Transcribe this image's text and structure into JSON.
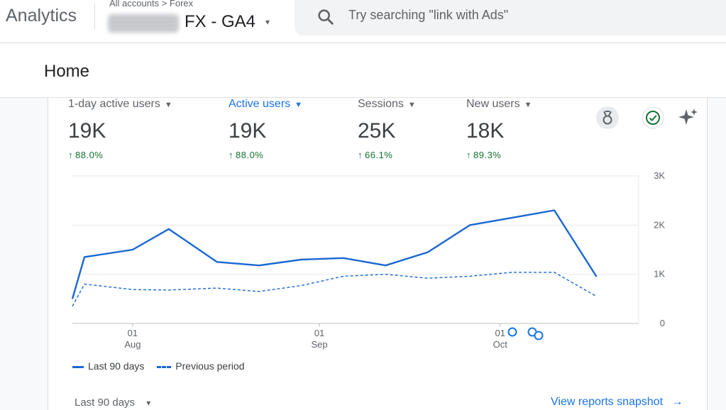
{
  "header": {
    "app_name": "Analytics",
    "breadcrumb": "All accounts  >  Forex",
    "property_name": "FX - GA4",
    "property_caret": "▾",
    "search_placeholder": "Try searching \"link with Ads\""
  },
  "page": {
    "title": "Home"
  },
  "metrics": [
    {
      "label": "1-day active users",
      "value": "19K",
      "change": "88.0%",
      "active": false
    },
    {
      "label": "Active users",
      "value": "19K",
      "change": "88.0%",
      "active": true
    },
    {
      "label": "Sessions",
      "value": "25K",
      "change": "66.1%",
      "active": false
    },
    {
      "label": "New users",
      "value": "18K",
      "change": "89.3%",
      "active": false
    }
  ],
  "colors": {
    "accent": "#1a73e8",
    "line": "#1967d2",
    "positive": "#137333"
  },
  "icons": [
    "search-icon",
    "insights-badge-icon",
    "check-circle-icon",
    "sparkle-icon"
  ],
  "chart_data": {
    "type": "line",
    "x": [
      "2024-07-22",
      "2024-07-24",
      "2024-08-01",
      "2024-08-07",
      "2024-08-15",
      "2024-08-22",
      "2024-08-29",
      "2024-09-05",
      "2024-09-12",
      "2024-09-19",
      "2024-09-26",
      "2024-10-03",
      "2024-10-10",
      "2024-10-17",
      "2024-10-24"
    ],
    "series": [
      {
        "name": "Last 90 days",
        "style": "solid",
        "values": [
          500,
          1350,
          1500,
          1920,
          1250,
          1180,
          1300,
          1330,
          1180,
          1450,
          2000,
          2150,
          2300,
          950,
          950
        ]
      },
      {
        "name": "Previous period",
        "style": "dashed",
        "values": [
          350,
          800,
          690,
          680,
          720,
          650,
          770,
          960,
          1000,
          920,
          960,
          1040,
          1040,
          550,
          550
        ]
      }
    ],
    "yticks": [
      "0",
      "1K",
      "2K",
      "3K"
    ],
    "ylim": [
      0,
      3000
    ],
    "xticks": [
      {
        "day": "01",
        "month": "Aug"
      },
      {
        "day": "01",
        "month": "Sep"
      },
      {
        "day": "01",
        "month": "Oct"
      }
    ],
    "grid": true,
    "annotations": 3,
    "legend_position": "bottom-left"
  },
  "legend": {
    "current": "Last 90 days",
    "previous": "Previous period"
  },
  "footer": {
    "range_label": "Last 90 days",
    "range_caret": "▾",
    "snapshot_link": "View reports snapshot"
  }
}
